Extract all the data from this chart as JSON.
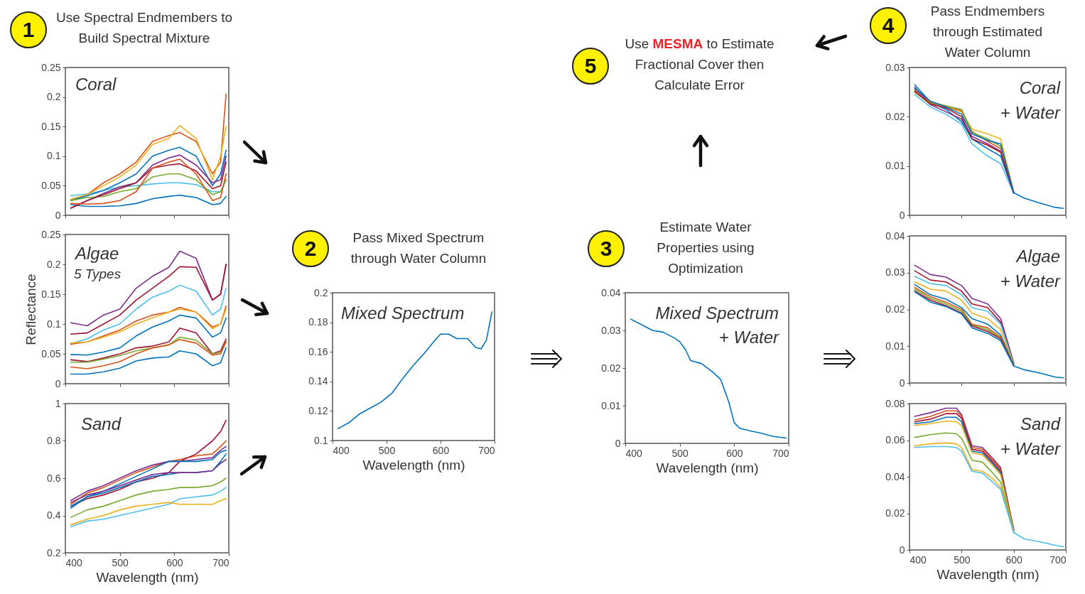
{
  "chart_data": [
    {
      "type": "line",
      "annotations": [
        "Coral"
      ],
      "x": [
        410,
        440,
        470,
        500,
        530,
        560,
        590,
        610,
        640,
        670,
        685,
        695
      ],
      "xlim": [
        400,
        700
      ],
      "xticks": [
        400,
        500,
        600,
        700
      ],
      "ylim": [
        0,
        0.25
      ],
      "yticks": [
        0,
        0.05,
        0.1,
        0.15,
        0.2,
        0.25
      ],
      "tick_labels": "y",
      "series": [
        {
          "color": "#0072bd",
          "values": [
            0.018,
            0.015,
            0.015,
            0.016,
            0.02,
            0.028,
            0.032,
            0.034,
            0.03,
            0.018,
            0.02,
            0.032
          ]
        },
        {
          "color": "#4dbeee",
          "values": [
            0.033,
            0.036,
            0.042,
            0.048,
            0.05,
            0.053,
            0.055,
            0.055,
            0.052,
            0.04,
            0.04,
            0.06
          ]
        },
        {
          "color": "#d95319",
          "values": [
            0.025,
            0.035,
            0.055,
            0.07,
            0.09,
            0.125,
            0.135,
            0.14,
            0.125,
            0.07,
            0.09,
            0.205
          ]
        },
        {
          "color": "#edb120",
          "values": [
            0.027,
            0.035,
            0.05,
            0.065,
            0.085,
            0.12,
            0.13,
            0.152,
            0.13,
            0.06,
            0.1,
            0.15
          ]
        },
        {
          "color": "#0072bd",
          "values": [
            0.025,
            0.033,
            0.042,
            0.055,
            0.07,
            0.1,
            0.11,
            0.115,
            0.1,
            0.05,
            0.07,
            0.11
          ]
        },
        {
          "color": "#7e2f8e",
          "values": [
            0.012,
            0.025,
            0.037,
            0.048,
            0.055,
            0.085,
            0.097,
            0.102,
            0.085,
            0.055,
            0.06,
            0.1
          ]
        },
        {
          "color": "#77ac30",
          "values": [
            0.025,
            0.03,
            0.032,
            0.04,
            0.045,
            0.065,
            0.07,
            0.07,
            0.06,
            0.035,
            0.04,
            0.06
          ]
        },
        {
          "color": "#a2142f",
          "values": [
            0.012,
            0.025,
            0.035,
            0.045,
            0.055,
            0.08,
            0.085,
            0.087,
            0.075,
            0.045,
            0.05,
            0.09
          ]
        },
        {
          "color": "#d95319",
          "values": [
            0.02,
            0.019,
            0.02,
            0.025,
            0.04,
            0.08,
            0.09,
            0.095,
            0.07,
            0.025,
            0.03,
            0.07
          ]
        }
      ]
    },
    {
      "type": "line",
      "annotations": [
        "Algae",
        "5 Types"
      ],
      "ylabel": "Reflectance",
      "x": [
        410,
        440,
        470,
        500,
        530,
        560,
        590,
        610,
        640,
        670,
        685,
        695
      ],
      "xlim": [
        400,
        700
      ],
      "xticks": [
        400,
        500,
        600,
        700
      ],
      "ylim": [
        0,
        0.25
      ],
      "yticks": [
        0,
        0.05,
        0.1,
        0.15,
        0.2,
        0.25
      ],
      "tick_labels": "y",
      "series": [
        {
          "color": "#7e2f8e",
          "values": [
            0.102,
            0.097,
            0.115,
            0.125,
            0.16,
            0.18,
            0.195,
            0.222,
            0.21,
            0.14,
            0.15,
            0.2
          ]
        },
        {
          "color": "#a2142f",
          "values": [
            0.083,
            0.085,
            0.1,
            0.115,
            0.14,
            0.16,
            0.18,
            0.196,
            0.195,
            0.14,
            0.15,
            0.2
          ]
        },
        {
          "color": "#4dbeee",
          "values": [
            0.067,
            0.075,
            0.09,
            0.1,
            0.125,
            0.145,
            0.155,
            0.165,
            0.155,
            0.115,
            0.125,
            0.16
          ]
        },
        {
          "color": "#d95319",
          "values": [
            0.066,
            0.07,
            0.08,
            0.09,
            0.105,
            0.115,
            0.12,
            0.128,
            0.12,
            0.095,
            0.1,
            0.13
          ]
        },
        {
          "color": "#edb120",
          "values": [
            0.068,
            0.07,
            0.078,
            0.087,
            0.1,
            0.11,
            0.12,
            0.125,
            0.12,
            0.092,
            0.1,
            0.125
          ]
        },
        {
          "color": "#0072bd",
          "values": [
            0.049,
            0.048,
            0.053,
            0.06,
            0.08,
            0.095,
            0.105,
            0.115,
            0.11,
            0.078,
            0.085,
            0.11
          ]
        },
        {
          "color": "#a2142f",
          "values": [
            0.04,
            0.037,
            0.043,
            0.05,
            0.06,
            0.063,
            0.07,
            0.093,
            0.085,
            0.05,
            0.055,
            0.075
          ]
        },
        {
          "color": "#77ac30",
          "values": [
            0.036,
            0.036,
            0.041,
            0.047,
            0.055,
            0.06,
            0.065,
            0.078,
            0.073,
            0.05,
            0.052,
            0.07
          ]
        },
        {
          "color": "#d95319",
          "values": [
            0.028,
            0.025,
            0.03,
            0.037,
            0.05,
            0.06,
            0.065,
            0.074,
            0.068,
            0.048,
            0.05,
            0.07
          ]
        },
        {
          "color": "#0072bd",
          "values": [
            0.016,
            0.016,
            0.02,
            0.026,
            0.038,
            0.043,
            0.045,
            0.055,
            0.05,
            0.03,
            0.035,
            0.06
          ]
        }
      ]
    },
    {
      "type": "line",
      "annotations": [
        "Sand"
      ],
      "xlabel": "Wavelength (nm)",
      "x": [
        410,
        440,
        470,
        500,
        530,
        560,
        590,
        610,
        640,
        670,
        685,
        695
      ],
      "xlim": [
        400,
        700
      ],
      "xticks": [
        400,
        500,
        600,
        700
      ],
      "ylim": [
        0.2,
        1
      ],
      "yticks": [
        0.2,
        0.4,
        0.6,
        0.8,
        1
      ],
      "series": [
        {
          "color": "#d95319",
          "values": [
            0.46,
            0.52,
            0.55,
            0.59,
            0.63,
            0.66,
            0.69,
            0.7,
            0.72,
            0.73,
            0.77,
            0.8
          ]
        },
        {
          "color": "#a2142f",
          "values": [
            0.45,
            0.49,
            0.51,
            0.54,
            0.58,
            0.6,
            0.63,
            0.69,
            0.73,
            0.8,
            0.85,
            0.91
          ]
        },
        {
          "color": "#7e2f8e",
          "values": [
            0.48,
            0.53,
            0.56,
            0.6,
            0.64,
            0.67,
            0.69,
            0.69,
            0.7,
            0.71,
            0.75,
            0.77
          ]
        },
        {
          "color": "#0072bd",
          "values": [
            0.44,
            0.5,
            0.53,
            0.57,
            0.61,
            0.65,
            0.69,
            0.69,
            0.69,
            0.7,
            0.74,
            0.75
          ]
        },
        {
          "color": "#0072bd",
          "values": [
            0.45,
            0.5,
            0.52,
            0.55,
            0.58,
            0.61,
            0.62,
            0.63,
            0.63,
            0.64,
            0.69,
            0.73
          ]
        },
        {
          "color": "#7e2f8e",
          "values": [
            0.47,
            0.51,
            0.53,
            0.56,
            0.59,
            0.62,
            0.63,
            0.63,
            0.63,
            0.64,
            0.68,
            0.7
          ]
        },
        {
          "color": "#77ac30",
          "values": [
            0.39,
            0.43,
            0.45,
            0.48,
            0.51,
            0.53,
            0.54,
            0.55,
            0.55,
            0.56,
            0.58,
            0.6
          ]
        },
        {
          "color": "#4dbeee",
          "values": [
            0.34,
            0.37,
            0.38,
            0.4,
            0.42,
            0.44,
            0.46,
            0.49,
            0.5,
            0.51,
            0.53,
            0.55
          ]
        },
        {
          "color": "#edb120",
          "values": [
            0.35,
            0.38,
            0.4,
            0.43,
            0.45,
            0.46,
            0.47,
            0.46,
            0.46,
            0.46,
            0.48,
            0.49
          ]
        }
      ]
    },
    {
      "type": "line",
      "annotations": [
        "Mixed Spectrum"
      ],
      "xlabel": "Wavelength (nm)",
      "x": [
        410,
        430,
        450,
        470,
        490,
        510,
        530,
        550,
        570,
        590,
        600,
        615,
        630,
        650,
        665,
        675,
        685,
        695
      ],
      "xlim": [
        400,
        700
      ],
      "xticks": [
        400,
        500,
        600,
        700
      ],
      "ylim": [
        0.1,
        0.2
      ],
      "yticks": [
        0.1,
        0.12,
        0.14,
        0.16,
        0.18,
        0.2
      ],
      "series": [
        {
          "color": "#0072bd",
          "values": [
            0.108,
            0.112,
            0.118,
            0.122,
            0.126,
            0.132,
            0.142,
            0.151,
            0.159,
            0.168,
            0.172,
            0.172,
            0.169,
            0.169,
            0.163,
            0.162,
            0.168,
            0.187
          ]
        }
      ]
    },
    {
      "type": "line",
      "annotations": [
        "Mixed Spectrum",
        "+ Water"
      ],
      "xlabel": "Wavelength (nm)",
      "x": [
        410,
        430,
        450,
        470,
        490,
        500,
        510,
        520,
        540,
        560,
        575,
        590,
        600,
        610,
        630,
        650,
        670,
        695
      ],
      "xlim": [
        400,
        700
      ],
      "xticks": [
        400,
        500,
        600,
        700
      ],
      "ylim": [
        0,
        0.04
      ],
      "yticks": [
        0,
        0.01,
        0.02,
        0.03,
        0.04
      ],
      "series": [
        {
          "color": "#0072bd",
          "values": [
            0.033,
            0.0315,
            0.03,
            0.0295,
            0.028,
            0.027,
            0.025,
            0.022,
            0.0212,
            0.019,
            0.017,
            0.011,
            0.0055,
            0.004,
            0.0033,
            0.0027,
            0.0019,
            0.0014
          ]
        }
      ]
    },
    {
      "type": "line",
      "annotations": [
        "Coral",
        "+ Water"
      ],
      "x": [
        410,
        440,
        470,
        500,
        520,
        550,
        575,
        600,
        620,
        650,
        680,
        695
      ],
      "xlim": [
        400,
        700
      ],
      "xticks": [
        400,
        500,
        600,
        700
      ],
      "ylim": [
        0,
        0.03
      ],
      "yticks": [
        0,
        0.01,
        0.02,
        0.03
      ],
      "tick_labels": "y",
      "series": [
        {
          "color": "#0072bd",
          "values": [
            0.0265,
            0.023,
            0.0215,
            0.019,
            0.0155,
            0.0135,
            0.012,
            0.0045,
            null,
            null,
            null,
            null
          ]
        },
        {
          "color": "#edb120",
          "values": [
            0.025,
            0.0225,
            0.022,
            0.021,
            0.0175,
            0.0165,
            0.0155,
            0.0048,
            null,
            null,
            null,
            null
          ]
        },
        {
          "color": "#d95319",
          "values": [
            0.0255,
            0.023,
            0.0222,
            0.0212,
            0.017,
            0.015,
            0.0135,
            0.0046,
            null,
            null,
            null,
            null
          ]
        },
        {
          "color": "#4dbeee",
          "values": [
            0.0245,
            0.022,
            0.0205,
            0.0185,
            0.0145,
            0.012,
            0.0105,
            0.0044,
            null,
            null,
            null,
            null
          ]
        },
        {
          "color": "#7e2f8e",
          "values": [
            0.026,
            0.0225,
            0.021,
            0.0195,
            0.016,
            0.0145,
            0.013,
            0.0045,
            null,
            null,
            null,
            null
          ]
        },
        {
          "color": "#77ac30",
          "values": [
            0.025,
            0.0228,
            0.0222,
            0.0215,
            0.0168,
            0.0155,
            0.014,
            0.0047,
            null,
            null,
            null,
            null
          ]
        },
        {
          "color": "#a2142f",
          "values": [
            0.0252,
            0.0226,
            0.0218,
            0.02,
            0.0155,
            0.0142,
            0.0128,
            0.0045,
            null,
            null,
            null,
            null
          ]
        },
        {
          "color": "#0072bd",
          "values": [
            0.0258,
            0.0232,
            0.022,
            0.0205,
            0.0165,
            0.0152,
            0.0145,
            0.0046,
            0.0035,
            0.0025,
            0.0016,
            0.0014
          ]
        }
      ]
    },
    {
      "type": "line",
      "annotations": [
        "Algae",
        "+ Water"
      ],
      "x": [
        410,
        440,
        470,
        500,
        520,
        550,
        575,
        600,
        620,
        650,
        680,
        695
      ],
      "xlim": [
        400,
        700
      ],
      "xticks": [
        400,
        500,
        600,
        700
      ],
      "ylim": [
        0,
        0.04
      ],
      "yticks": [
        0,
        0.01,
        0.02,
        0.03,
        0.04
      ],
      "tick_labels": "y",
      "series": [
        {
          "color": "#7e2f8e",
          "values": [
            0.032,
            0.0295,
            0.0288,
            0.0265,
            0.023,
            0.0215,
            0.0175,
            0.0055,
            null,
            null,
            null,
            null
          ]
        },
        {
          "color": "#a2142f",
          "values": [
            0.0305,
            0.028,
            0.0275,
            0.025,
            0.0215,
            0.0205,
            0.0165,
            0.0053,
            null,
            null,
            null,
            null
          ]
        },
        {
          "color": "#4dbeee",
          "values": [
            0.029,
            0.027,
            0.0265,
            0.024,
            0.0205,
            0.0195,
            0.016,
            0.0052,
            null,
            null,
            null,
            null
          ]
        },
        {
          "color": "#edb120",
          "values": [
            0.0275,
            0.0255,
            0.025,
            0.0225,
            0.019,
            0.0175,
            0.0145,
            0.005,
            null,
            null,
            null,
            null
          ]
        },
        {
          "color": "#0072bd",
          "values": [
            0.0268,
            0.024,
            0.0228,
            0.0205,
            0.0175,
            0.016,
            0.013,
            0.0049,
            null,
            null,
            null,
            null
          ]
        },
        {
          "color": "#d95319",
          "values": [
            0.026,
            0.0235,
            0.022,
            0.02,
            0.016,
            0.015,
            0.0125,
            0.0048,
            null,
            null,
            null,
            null
          ]
        },
        {
          "color": "#77ac30",
          "values": [
            0.0255,
            0.023,
            0.0215,
            0.0195,
            0.0158,
            0.0145,
            0.0122,
            0.0048,
            null,
            null,
            null,
            null
          ]
        },
        {
          "color": "#a2142f",
          "values": [
            0.025,
            0.0225,
            0.021,
            0.019,
            0.0155,
            0.014,
            0.012,
            0.0047,
            null,
            null,
            null,
            null
          ]
        },
        {
          "color": "#0072bd",
          "values": [
            0.0248,
            0.022,
            0.0208,
            0.0188,
            0.015,
            0.0135,
            0.0115,
            0.0046,
            0.0036,
            0.0027,
            0.0016,
            0.0014
          ]
        }
      ]
    },
    {
      "type": "line",
      "annotations": [
        "Sand",
        "+ Water"
      ],
      "xlabel": "Wavelength (nm)",
      "x": [
        410,
        440,
        470,
        490,
        500,
        520,
        540,
        560,
        575,
        600,
        620,
        650,
        680,
        695
      ],
      "xlim": [
        400,
        700
      ],
      "xticks": [
        400,
        500,
        600,
        700
      ],
      "ylim": [
        0,
        0.08
      ],
      "yticks": [
        0,
        0.02,
        0.04,
        0.06,
        0.08
      ],
      "series": [
        {
          "color": "#7e2f8e",
          "values": [
            0.073,
            0.075,
            0.0775,
            0.0775,
            0.074,
            0.057,
            0.056,
            0.05,
            0.045,
            0.011,
            null,
            null,
            null,
            null
          ]
        },
        {
          "color": "#d95319",
          "values": [
            0.071,
            0.073,
            0.076,
            0.076,
            0.073,
            0.056,
            0.055,
            0.049,
            0.044,
            0.011,
            null,
            null,
            null,
            null
          ]
        },
        {
          "color": "#a2142f",
          "values": [
            0.07,
            0.0715,
            0.0745,
            0.0745,
            0.072,
            0.055,
            0.054,
            0.048,
            0.043,
            0.011,
            null,
            null,
            null,
            null
          ]
        },
        {
          "color": "#0072bd",
          "values": [
            0.069,
            0.07,
            0.0725,
            0.0725,
            0.07,
            0.054,
            0.053,
            0.047,
            0.042,
            0.0105,
            null,
            null,
            null,
            null
          ]
        },
        {
          "color": "#edb120",
          "values": [
            0.068,
            0.069,
            0.0705,
            0.07,
            0.068,
            0.053,
            0.052,
            0.046,
            0.041,
            0.0105,
            null,
            null,
            null,
            null
          ]
        },
        {
          "color": "#77ac30",
          "values": [
            0.0615,
            0.063,
            0.064,
            0.0635,
            0.061,
            0.049,
            0.048,
            0.042,
            0.037,
            0.01,
            null,
            null,
            null,
            null
          ]
        },
        {
          "color": "#edb120",
          "values": [
            0.057,
            0.058,
            0.0585,
            0.058,
            0.056,
            0.044,
            0.043,
            0.039,
            0.034,
            0.0095,
            null,
            null,
            null,
            null
          ]
        },
        {
          "color": "#4dbeee",
          "values": [
            0.056,
            0.0565,
            0.0565,
            0.056,
            0.054,
            0.043,
            0.042,
            0.037,
            0.033,
            0.0095,
            0.006,
            0.0045,
            0.0025,
            0.0018
          ]
        }
      ]
    },
    {
      "type": "other",
      "annotations": [
        "1",
        "Use Spectral Endmembers to Build Spectral Mixture",
        "2",
        "Pass Mixed Spectrum through Water Column",
        "3",
        "Estimate Water Properties using Optimization",
        "4",
        "Pass Endmembers through Estimated Water Column",
        "5",
        "Use",
        "MESMA",
        "to Estimate Fractional Cover then Calculate Error"
      ]
    }
  ]
}
